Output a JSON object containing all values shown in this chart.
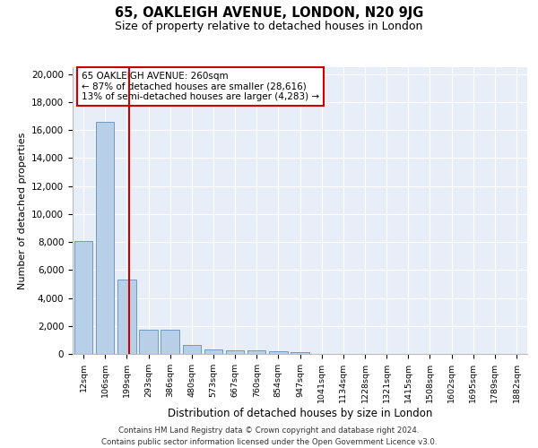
{
  "title_line1": "65, OAKLEIGH AVENUE, LONDON, N20 9JG",
  "title_line2": "Size of property relative to detached houses in London",
  "xlabel": "Distribution of detached houses by size in London",
  "ylabel": "Number of detached properties",
  "categories": [
    "12sqm",
    "106sqm",
    "199sqm",
    "293sqm",
    "386sqm",
    "480sqm",
    "573sqm",
    "667sqm",
    "760sqm",
    "854sqm",
    "947sqm",
    "1041sqm",
    "1134sqm",
    "1228sqm",
    "1321sqm",
    "1415sqm",
    "1508sqm",
    "1602sqm",
    "1695sqm",
    "1789sqm",
    "1882sqm"
  ],
  "values": [
    8100,
    16600,
    5300,
    1750,
    1750,
    650,
    350,
    280,
    230,
    180,
    155,
    0,
    0,
    0,
    0,
    0,
    0,
    0,
    0,
    0,
    0
  ],
  "bar_color": "#b8cfe8",
  "bar_edge_color": "#6090c0",
  "background_color": "#e8eef8",
  "vline_color": "#cc0000",
  "annotation_text": "65 OAKLEIGH AVENUE: 260sqm\n← 87% of detached houses are smaller (28,616)\n13% of semi-detached houses are larger (4,283) →",
  "annotation_box_color": "#cc0000",
  "ylim": [
    0,
    20500
  ],
  "yticks": [
    0,
    2000,
    4000,
    6000,
    8000,
    10000,
    12000,
    14000,
    16000,
    18000,
    20000
  ],
  "footer_line1": "Contains HM Land Registry data © Crown copyright and database right 2024.",
  "footer_line2": "Contains public sector information licensed under the Open Government Licence v3.0.",
  "figsize": [
    6.0,
    5.0
  ],
  "dpi": 100
}
